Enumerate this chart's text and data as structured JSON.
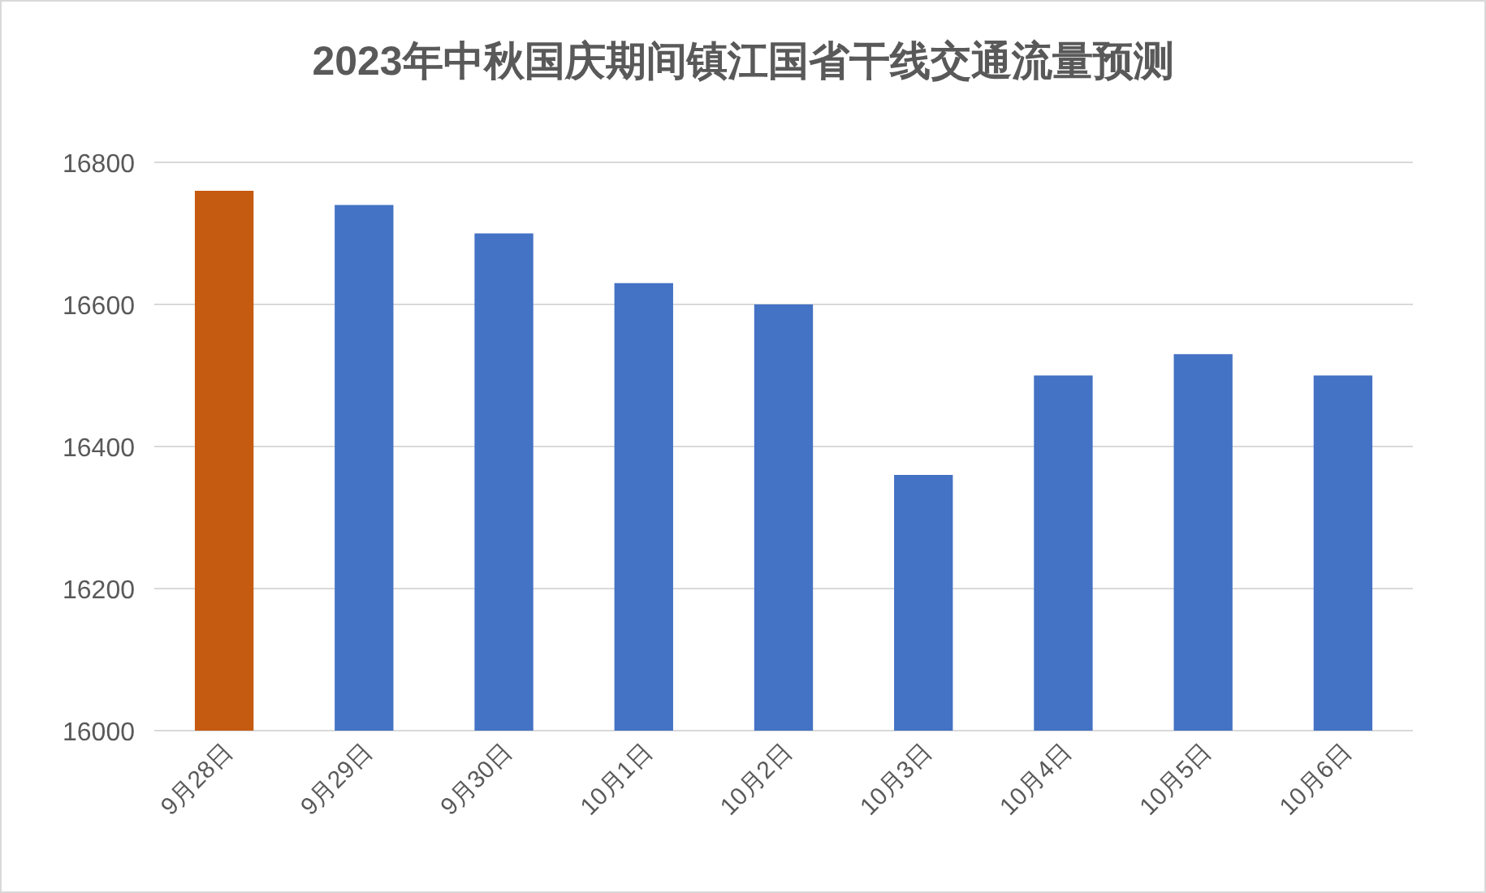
{
  "chart_data": {
    "type": "bar",
    "title": "2023年中秋国庆期间镇江国省干线交通流量预测",
    "categories": [
      "9月28日",
      "9月29日",
      "9月30日",
      "10月1日",
      "10月2日",
      "10月3日",
      "10月4日",
      "10月5日",
      "10月6日"
    ],
    "values": [
      16760,
      16740,
      16700,
      16630,
      16600,
      16360,
      16500,
      16530,
      16500
    ],
    "colors": [
      "#c55a11",
      "#4472c4",
      "#4472c4",
      "#4472c4",
      "#4472c4",
      "#4472c4",
      "#4472c4",
      "#4472c4",
      "#4472c4"
    ],
    "ylim": [
      16000,
      16800
    ],
    "yticks": [
      16000,
      16200,
      16400,
      16600,
      16800
    ],
    "grid": true
  }
}
